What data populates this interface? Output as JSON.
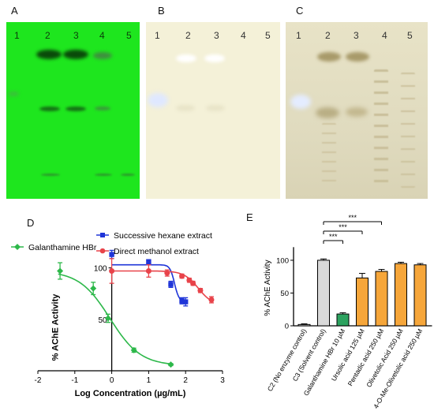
{
  "panels": {
    "A": {
      "letter": "A",
      "lanes": [
        "1",
        "2",
        "3",
        "4",
        "5"
      ]
    },
    "B": {
      "letter": "B",
      "lanes": [
        "1",
        "2",
        "3",
        "4",
        "5"
      ]
    },
    "C": {
      "letter": "C",
      "lanes": [
        "1",
        "2",
        "3",
        "4",
        "5"
      ]
    },
    "D": {
      "letter": "D"
    },
    "E": {
      "letter": "E"
    }
  },
  "colors": {
    "galantamine": "#2db84a",
    "hexane": "#1f35d8",
    "methanol": "#e8434a",
    "grey_bar": "#d9d9d9",
    "green_bar": "#2ca25f",
    "orange_bar": "#f6a63a"
  },
  "chart_data": [
    {
      "type": "scatter",
      "panel": "D",
      "title": "",
      "xlabel": "Log Concentration (µg/mL)",
      "ylabel": "% AChE Activity",
      "xlim": [
        -2,
        3
      ],
      "ylim": [
        0,
        115
      ],
      "xticks": [
        "-2",
        "-1",
        "0",
        "1",
        "2",
        "3"
      ],
      "yticks": [
        "50",
        "100"
      ],
      "series": [
        {
          "name": "Galanthamine HBr",
          "x": [
            -1.4,
            -0.5,
            -0.1,
            0.6,
            1.6
          ],
          "y": [
            97,
            80,
            51,
            20,
            6
          ],
          "err": [
            8,
            6,
            4,
            2,
            1
          ]
        },
        {
          "name": "Successive hexane extract",
          "x": [
            0.0,
            1.0,
            1.6,
            1.9,
            2.0
          ],
          "y": [
            113,
            106,
            84,
            68,
            67
          ],
          "err": [
            4,
            2,
            3,
            3,
            4
          ]
        },
        {
          "name": "Direct methanol extract",
          "x": [
            0.0,
            1.0,
            1.5,
            1.9,
            2.1,
            2.2,
            2.4,
            2.7
          ],
          "y": [
            97,
            97,
            95,
            92,
            88,
            85,
            78,
            69
          ],
          "err": [
            12,
            6,
            3,
            2,
            2,
            2,
            2,
            3
          ]
        }
      ]
    },
    {
      "type": "bar",
      "panel": "E",
      "title": "",
      "xlabel": "",
      "ylabel": "% AChE Activity",
      "ylim": [
        0,
        130
      ],
      "yticks": [
        "0",
        "50",
        "100"
      ],
      "categories": [
        "C2 (No enzyme control)",
        "C3 (Solvent control)",
        "Galanthamine HBr 10 µM",
        "Ursolic acid 125 µM",
        "Pentadic acid 250 µM",
        "Olivetolic Acid 250 µM",
        "4-O-Me-Olivetolic acid 250 µM"
      ],
      "values": [
        2,
        100,
        18,
        73,
        83,
        95,
        93
      ],
      "errors": [
        1,
        2,
        2,
        7,
        3,
        2,
        2
      ],
      "significance": [
        "***",
        "***",
        "***"
      ]
    }
  ]
}
